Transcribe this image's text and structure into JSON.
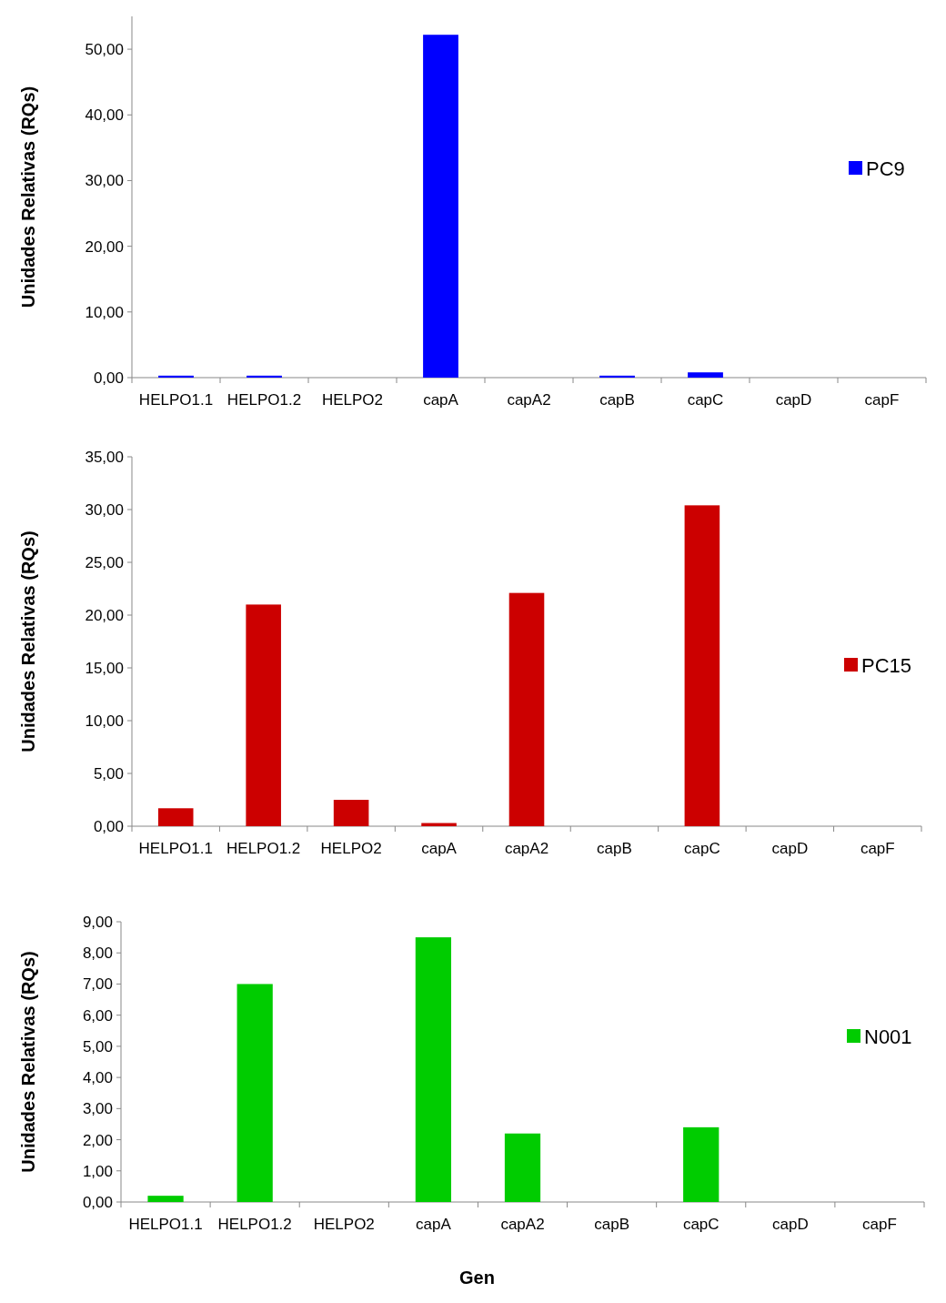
{
  "chart_data": [
    {
      "type": "bar",
      "ylabel": "Unidades Relativas  (RQs)",
      "categories": [
        "HELPO1.1",
        "HELPO1.2",
        "HELPO2",
        "capA",
        "capA2",
        "capB",
        "capC",
        "capD",
        "capF"
      ],
      "series": [
        {
          "name": "PC9",
          "color": "#0000ff",
          "values": [
            0.3,
            0.3,
            0,
            52.2,
            0,
            0.3,
            0.8,
            0,
            0
          ]
        }
      ],
      "ylim": [
        0,
        55
      ],
      "yticks": [
        {
          "value": 0,
          "label": "0,00"
        },
        {
          "value": 10,
          "label": "10,00"
        },
        {
          "value": 20,
          "label": "20,00"
        },
        {
          "value": 30,
          "label": "30,00"
        },
        {
          "value": 40,
          "label": "40,00"
        },
        {
          "value": 50,
          "label": "50,00"
        }
      ],
      "legend": "right"
    },
    {
      "type": "bar",
      "ylabel": "Unidades Relativas  (RQs)",
      "categories": [
        "HELPO1.1",
        "HELPO1.2",
        "HELPO2",
        "capA",
        "capA2",
        "capB",
        "capC",
        "capD",
        "capF"
      ],
      "series": [
        {
          "name": "PC15",
          "color": "#cc0000",
          "values": [
            1.7,
            21.0,
            2.5,
            0.3,
            22.1,
            0,
            30.4,
            0,
            0
          ]
        }
      ],
      "ylim": [
        0,
        35
      ],
      "yticks": [
        {
          "value": 0,
          "label": "0,00"
        },
        {
          "value": 5,
          "label": "5,00"
        },
        {
          "value": 10,
          "label": "10,00"
        },
        {
          "value": 15,
          "label": "15,00"
        },
        {
          "value": 20,
          "label": "20,00"
        },
        {
          "value": 25,
          "label": "25,00"
        },
        {
          "value": 30,
          "label": "30,00"
        },
        {
          "value": 35,
          "label": "35,00"
        }
      ],
      "legend": "right"
    },
    {
      "type": "bar",
      "xlabel": "Gen",
      "ylabel": "Unidades Relativas  (RQs)",
      "categories": [
        "HELPO1.1",
        "HELPO1.2",
        "HELPO2",
        "capA",
        "capA2",
        "capB",
        "capC",
        "capD",
        "capF"
      ],
      "series": [
        {
          "name": "N001",
          "color": "#00cc00",
          "values": [
            0.2,
            7.0,
            0,
            8.5,
            2.2,
            0,
            2.4,
            0,
            0
          ]
        }
      ],
      "ylim": [
        0,
        9
      ],
      "yticks": [
        {
          "value": 0,
          "label": "0,00"
        },
        {
          "value": 1,
          "label": "1,00"
        },
        {
          "value": 2,
          "label": "2,00"
        },
        {
          "value": 3,
          "label": "3,00"
        },
        {
          "value": 4,
          "label": "4,00"
        },
        {
          "value": 5,
          "label": "5,00"
        },
        {
          "value": 6,
          "label": "6,00"
        },
        {
          "value": 7,
          "label": "7,00"
        },
        {
          "value": 8,
          "label": "8,00"
        },
        {
          "value": 9,
          "label": "9,00"
        }
      ],
      "legend": "right"
    }
  ]
}
